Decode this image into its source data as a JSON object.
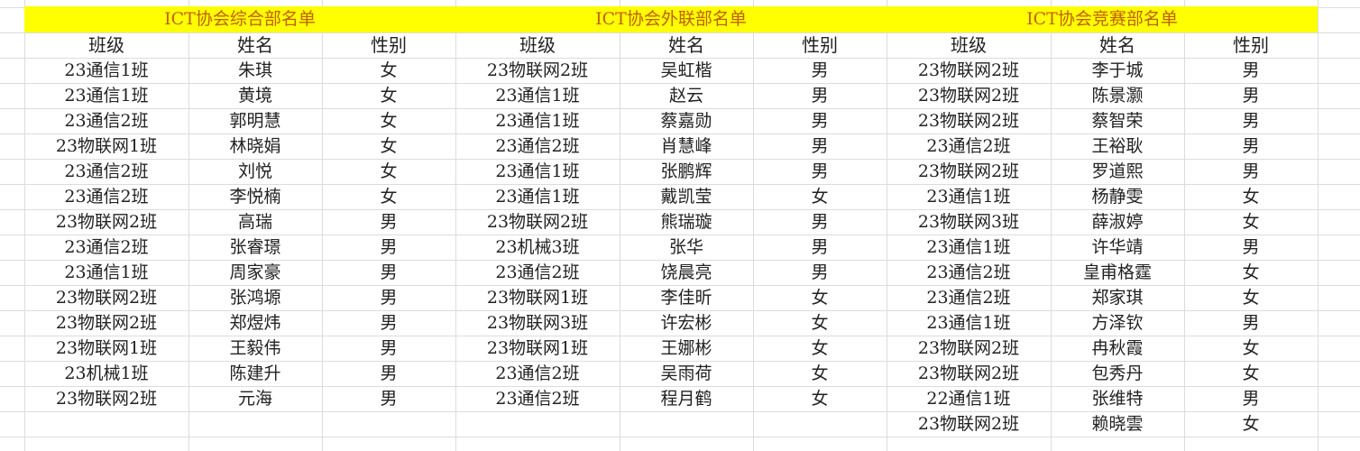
{
  "colors": {
    "banner": "#ffff00",
    "title_text": "#c0600a"
  },
  "tables": [
    {
      "title": "ICT协会综合部名单",
      "headers": [
        "班级",
        "姓名",
        "性别"
      ],
      "rows": [
        [
          "23通信1班",
          "朱琪",
          "女"
        ],
        [
          "23通信1班",
          "黄境",
          "女"
        ],
        [
          "23通信2班",
          "郭明慧",
          "女"
        ],
        [
          "23物联网1班",
          "林晓娟",
          "女"
        ],
        [
          "23通信2班",
          "刘悦",
          "女"
        ],
        [
          "23通信2班",
          "李悦楠",
          "女"
        ],
        [
          "23物联网2班",
          "高瑞",
          "男"
        ],
        [
          "23通信2班",
          "张睿璟",
          "男"
        ],
        [
          "23通信1班",
          "周家豪",
          "男"
        ],
        [
          "23物联网2班",
          "张鸿塬",
          "男"
        ],
        [
          "23物联网2班",
          "郑煜炜",
          "男"
        ],
        [
          "23物联网1班",
          "王毅伟",
          "男"
        ],
        [
          "23机械1班",
          "陈建升",
          "男"
        ],
        [
          "23物联网2班",
          "元海",
          "男"
        ]
      ]
    },
    {
      "title": "ICT协会外联部名单",
      "headers": [
        "班级",
        "姓名",
        "性别"
      ],
      "rows": [
        [
          "23物联网2班",
          "吴虹楷",
          "男"
        ],
        [
          "23通信1班",
          "赵云",
          "男"
        ],
        [
          "23通信1班",
          "蔡嘉勋",
          "男"
        ],
        [
          "23通信2班",
          "肖慧峰",
          "男"
        ],
        [
          "23通信1班",
          "张鹏辉",
          "男"
        ],
        [
          "23通信1班",
          "戴凯莹",
          "女"
        ],
        [
          "23物联网2班",
          "熊瑞璇",
          "男"
        ],
        [
          "23机械3班",
          "张华",
          "男"
        ],
        [
          "23通信2班",
          "饶晨亮",
          "男"
        ],
        [
          "23物联网1班",
          "李佳昕",
          "女"
        ],
        [
          "23物联网3班",
          "许宏彬",
          "女"
        ],
        [
          "23物联网1班",
          "王娜彬",
          "女"
        ],
        [
          "23通信2班",
          "吴雨荷",
          "女"
        ],
        [
          "23通信2班",
          "程月鹤",
          "女"
        ]
      ]
    },
    {
      "title": "ICT协会竞赛部名单",
      "headers": [
        "班级",
        "姓名",
        "性别"
      ],
      "rows": [
        [
          "23物联网2班",
          "李于城",
          "男"
        ],
        [
          "23物联网2班",
          "陈景灏",
          "男"
        ],
        [
          "23物联网2班",
          "蔡智荣",
          "男"
        ],
        [
          "23通信2班",
          "王裕耿",
          "男"
        ],
        [
          "23物联网2班",
          "罗道熙",
          "男"
        ],
        [
          "23通信1班",
          "杨静雯",
          "女"
        ],
        [
          "23物联网3班",
          "薛淑婷",
          "女"
        ],
        [
          "23通信1班",
          "许华靖",
          "男"
        ],
        [
          "23通信2班",
          "皇甫格霆",
          "女"
        ],
        [
          "23通信2班",
          "郑家琪",
          "女"
        ],
        [
          "23通信1班",
          "方泽钦",
          "男"
        ],
        [
          "23物联网2班",
          "冉秋霞",
          "女"
        ],
        [
          "23物联网2班",
          "包秀丹",
          "女"
        ],
        [
          "22通信1班",
          "张维特",
          "男"
        ],
        [
          "23物联网2班",
          "赖晓雲",
          "女"
        ]
      ]
    }
  ]
}
